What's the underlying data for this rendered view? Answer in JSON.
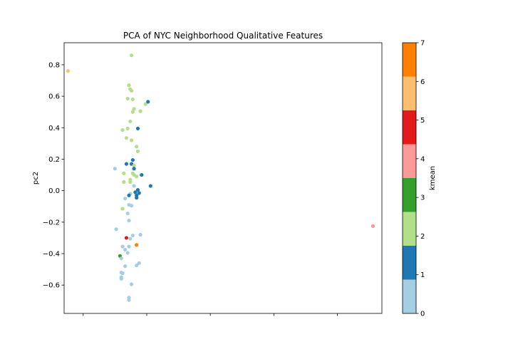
{
  "chart_data": {
    "type": "scatter",
    "title": "PCA of NYC Neighborhood Qualitative Features",
    "xlabel": "",
    "ylabel": "pc2",
    "colorbar_label": "kmean",
    "xlim": [
      -0.15,
      2.35
    ],
    "ylim": [
      -0.78,
      0.94
    ],
    "yticks": [
      "0.8",
      "0.6",
      "0.4",
      "0.2",
      "0.0",
      "−0.2",
      "−0.4",
      "−0.6"
    ],
    "ytick_values": [
      0.8,
      0.6,
      0.4,
      0.2,
      0.0,
      -0.2,
      -0.4,
      -0.6
    ],
    "xtick_values": [
      0.0,
      0.5,
      1.0,
      1.5,
      2.0
    ],
    "colorbar_ticks": [
      "0",
      "1",
      "2",
      "3",
      "4",
      "5",
      "6",
      "7"
    ],
    "cluster_colors": [
      "#a6cee3",
      "#1f78b4",
      "#b2df8a",
      "#33a02c",
      "#fb9a99",
      "#e31a1c",
      "#fdbf6f",
      "#ff7f00"
    ],
    "points": [
      {
        "x": -0.12,
        "y": 0.76,
        "k": 6
      },
      {
        "x": 0.38,
        "y": 0.86,
        "k": 2
      },
      {
        "x": 0.36,
        "y": 0.67,
        "k": 2
      },
      {
        "x": 0.37,
        "y": 0.645,
        "k": 2
      },
      {
        "x": 0.38,
        "y": 0.635,
        "k": 2
      },
      {
        "x": 0.35,
        "y": 0.585,
        "k": 2
      },
      {
        "x": 0.39,
        "y": 0.58,
        "k": 2
      },
      {
        "x": 0.49,
        "y": 0.55,
        "k": 2
      },
      {
        "x": 0.51,
        "y": 0.565,
        "k": 1
      },
      {
        "x": 0.4,
        "y": 0.52,
        "k": 2
      },
      {
        "x": 0.39,
        "y": 0.5,
        "k": 2
      },
      {
        "x": 0.45,
        "y": 0.505,
        "k": 2
      },
      {
        "x": 0.37,
        "y": 0.44,
        "k": 2
      },
      {
        "x": 0.35,
        "y": 0.395,
        "k": 2
      },
      {
        "x": 0.31,
        "y": 0.385,
        "k": 2
      },
      {
        "x": 0.43,
        "y": 0.395,
        "k": 1
      },
      {
        "x": 0.34,
        "y": 0.335,
        "k": 2
      },
      {
        "x": 0.38,
        "y": 0.32,
        "k": 2
      },
      {
        "x": 0.42,
        "y": 0.28,
        "k": 2
      },
      {
        "x": 0.43,
        "y": 0.25,
        "k": 2
      },
      {
        "x": 0.39,
        "y": 0.195,
        "k": 1
      },
      {
        "x": 0.34,
        "y": 0.17,
        "k": 1
      },
      {
        "x": 0.38,
        "y": 0.17,
        "k": 1
      },
      {
        "x": 0.4,
        "y": 0.16,
        "k": 2
      },
      {
        "x": 0.25,
        "y": 0.14,
        "k": 0
      },
      {
        "x": 0.4,
        "y": 0.14,
        "k": 1
      },
      {
        "x": 0.32,
        "y": 0.11,
        "k": 2
      },
      {
        "x": 0.39,
        "y": 0.11,
        "k": 2
      },
      {
        "x": 0.4,
        "y": 0.1,
        "k": 2
      },
      {
        "x": 0.46,
        "y": 0.1,
        "k": 1
      },
      {
        "x": 0.42,
        "y": 0.09,
        "k": 2
      },
      {
        "x": 0.37,
        "y": 0.07,
        "k": 2
      },
      {
        "x": 0.37,
        "y": 0.055,
        "k": 2
      },
      {
        "x": 0.32,
        "y": 0.055,
        "k": 2
      },
      {
        "x": 0.53,
        "y": 0.03,
        "k": 1
      },
      {
        "x": 0.4,
        "y": 0.03,
        "k": 0
      },
      {
        "x": 0.43,
        "y": 0.005,
        "k": 1
      },
      {
        "x": 0.41,
        "y": -0.01,
        "k": 1
      },
      {
        "x": 0.44,
        "y": -0.015,
        "k": 1
      },
      {
        "x": 0.37,
        "y": -0.02,
        "k": 0
      },
      {
        "x": 0.36,
        "y": -0.03,
        "k": 1
      },
      {
        "x": 0.42,
        "y": -0.03,
        "k": 1
      },
      {
        "x": 0.42,
        "y": -0.045,
        "k": 1
      },
      {
        "x": 0.33,
        "y": -0.05,
        "k": 0
      },
      {
        "x": 0.36,
        "y": -0.09,
        "k": 0
      },
      {
        "x": 0.38,
        "y": -0.095,
        "k": 0
      },
      {
        "x": 0.31,
        "y": -0.115,
        "k": 2
      },
      {
        "x": 0.35,
        "y": -0.145,
        "k": 0
      },
      {
        "x": 0.36,
        "y": -0.19,
        "k": 0
      },
      {
        "x": 0.26,
        "y": -0.245,
        "k": 0
      },
      {
        "x": 0.45,
        "y": -0.28,
        "k": 0
      },
      {
        "x": 0.39,
        "y": -0.285,
        "k": 0
      },
      {
        "x": 0.34,
        "y": -0.3,
        "k": 5
      },
      {
        "x": 0.37,
        "y": -0.305,
        "k": 0
      },
      {
        "x": 0.42,
        "y": -0.345,
        "k": 7
      },
      {
        "x": 0.31,
        "y": -0.355,
        "k": 0
      },
      {
        "x": 0.36,
        "y": -0.355,
        "k": 0
      },
      {
        "x": 0.33,
        "y": -0.375,
        "k": 0
      },
      {
        "x": 0.35,
        "y": -0.395,
        "k": 0
      },
      {
        "x": 0.29,
        "y": -0.415,
        "k": 3
      },
      {
        "x": 0.3,
        "y": -0.43,
        "k": 0
      },
      {
        "x": 0.44,
        "y": -0.46,
        "k": 0
      },
      {
        "x": 0.42,
        "y": -0.475,
        "k": 0
      },
      {
        "x": 0.33,
        "y": -0.48,
        "k": 0
      },
      {
        "x": 0.3,
        "y": -0.52,
        "k": 0
      },
      {
        "x": 0.31,
        "y": -0.525,
        "k": 0
      },
      {
        "x": 0.3,
        "y": -0.55,
        "k": 0
      },
      {
        "x": 0.3,
        "y": -0.56,
        "k": 0
      },
      {
        "x": 0.38,
        "y": -0.595,
        "k": 0
      },
      {
        "x": 0.36,
        "y": -0.68,
        "k": 0
      },
      {
        "x": 0.36,
        "y": -0.695,
        "k": 0
      },
      {
        "x": 2.28,
        "y": -0.225,
        "k": 4
      }
    ]
  }
}
